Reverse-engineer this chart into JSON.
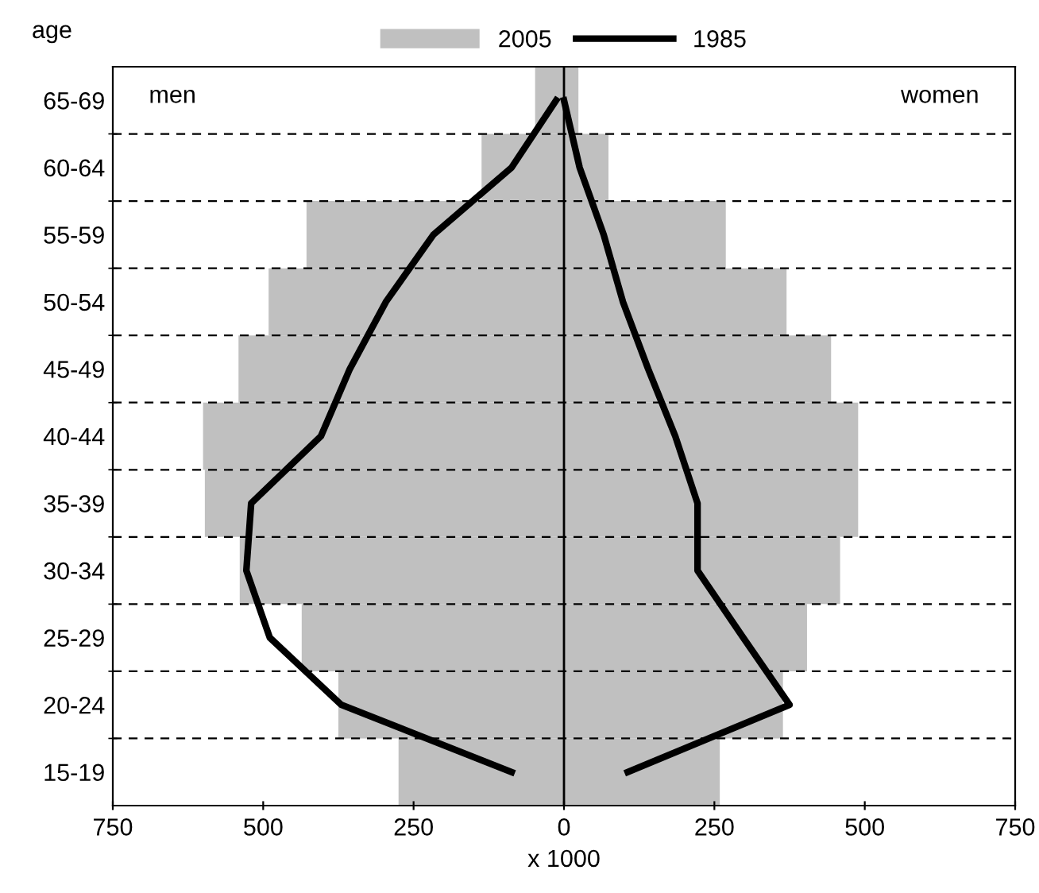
{
  "chart_data": {
    "type": "bar",
    "orientation": "horizontal",
    "stacked": true,
    "ylabel": "age",
    "xlabel": "x 1000",
    "categories": [
      "65-69",
      "60-64",
      "55-59",
      "50-54",
      "45-49",
      "40-44",
      "35-39",
      "30-34",
      "25-29",
      "20-24",
      "15-19"
    ],
    "series": [
      {
        "name": "2005",
        "color": "#c0c0c0",
        "values": [
          -48,
          -137,
          -428,
          -491,
          -541,
          -600,
          -597,
          -539,
          -436,
          -375,
          -275
        ]
      },
      {
        "color": "#c0c0c0",
        "values": [
          24,
          74,
          269,
          370,
          444,
          489,
          489,
          459,
          404,
          364,
          259
        ]
      },
      {
        "name": "1985",
        "type": "line",
        "color": "#000000",
        "values": [
          -13,
          -87,
          -217,
          -296,
          -356,
          -404,
          -520,
          -528,
          -489,
          -370,
          -87
        ]
      },
      {
        "type": "line",
        "color": "#000000",
        "values": [
          0,
          26,
          66,
          98,
          140,
          185,
          222,
          222,
          298,
          375,
          106
        ]
      }
    ],
    "xlim": [
      -750,
      750
    ],
    "xticks": [
      {
        "value": -750,
        "label": "750"
      },
      {
        "value": -500,
        "label": "500"
      },
      {
        "value": -250,
        "label": "250"
      },
      0,
      250,
      500,
      750
    ],
    "ref_lines": [
      {
        "axis": "x",
        "value": 0,
        "color": "#000000"
      }
    ],
    "annotations": [
      "men",
      "women"
    ],
    "grid": "y",
    "legend": "top",
    "line_style": "solid",
    "marker": "none"
  }
}
